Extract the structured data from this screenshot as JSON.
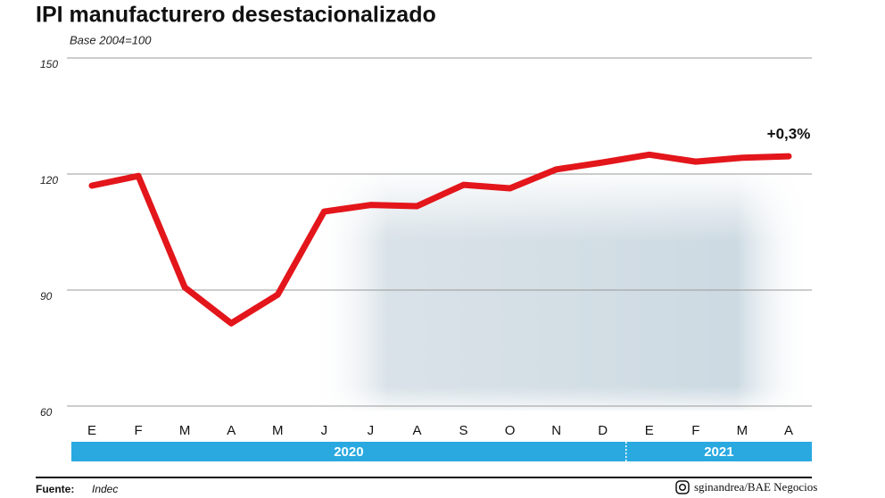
{
  "chart_data": {
    "type": "line",
    "title": "IPI manufacturero desestacionalizado",
    "subtitle": "Base 2004=100",
    "categories": [
      "E",
      "F",
      "M",
      "A",
      "M",
      "J",
      "J",
      "A",
      "S",
      "O",
      "N",
      "D",
      "E",
      "F",
      "M",
      "A"
    ],
    "series": [
      {
        "name": "IPI",
        "color": "#e3161b",
        "values": [
          117,
          119.5,
          90.7,
          81.4,
          88.8,
          110.3,
          112,
          111.7,
          117.2,
          116.3,
          121.2,
          123,
          125,
          123.2,
          124.2,
          124.6
        ]
      }
    ],
    "year_groups": [
      {
        "label": "2020",
        "count": 12
      },
      {
        "label": "2021",
        "count": 4
      }
    ],
    "annotation": "+0,3%",
    "ylim": [
      60,
      150
    ],
    "yticks": [
      60,
      90,
      120,
      150
    ],
    "grid": true,
    "source_label": "Fuente:",
    "source": "Indec",
    "credit": "sginandrea/BAE Negocios"
  }
}
